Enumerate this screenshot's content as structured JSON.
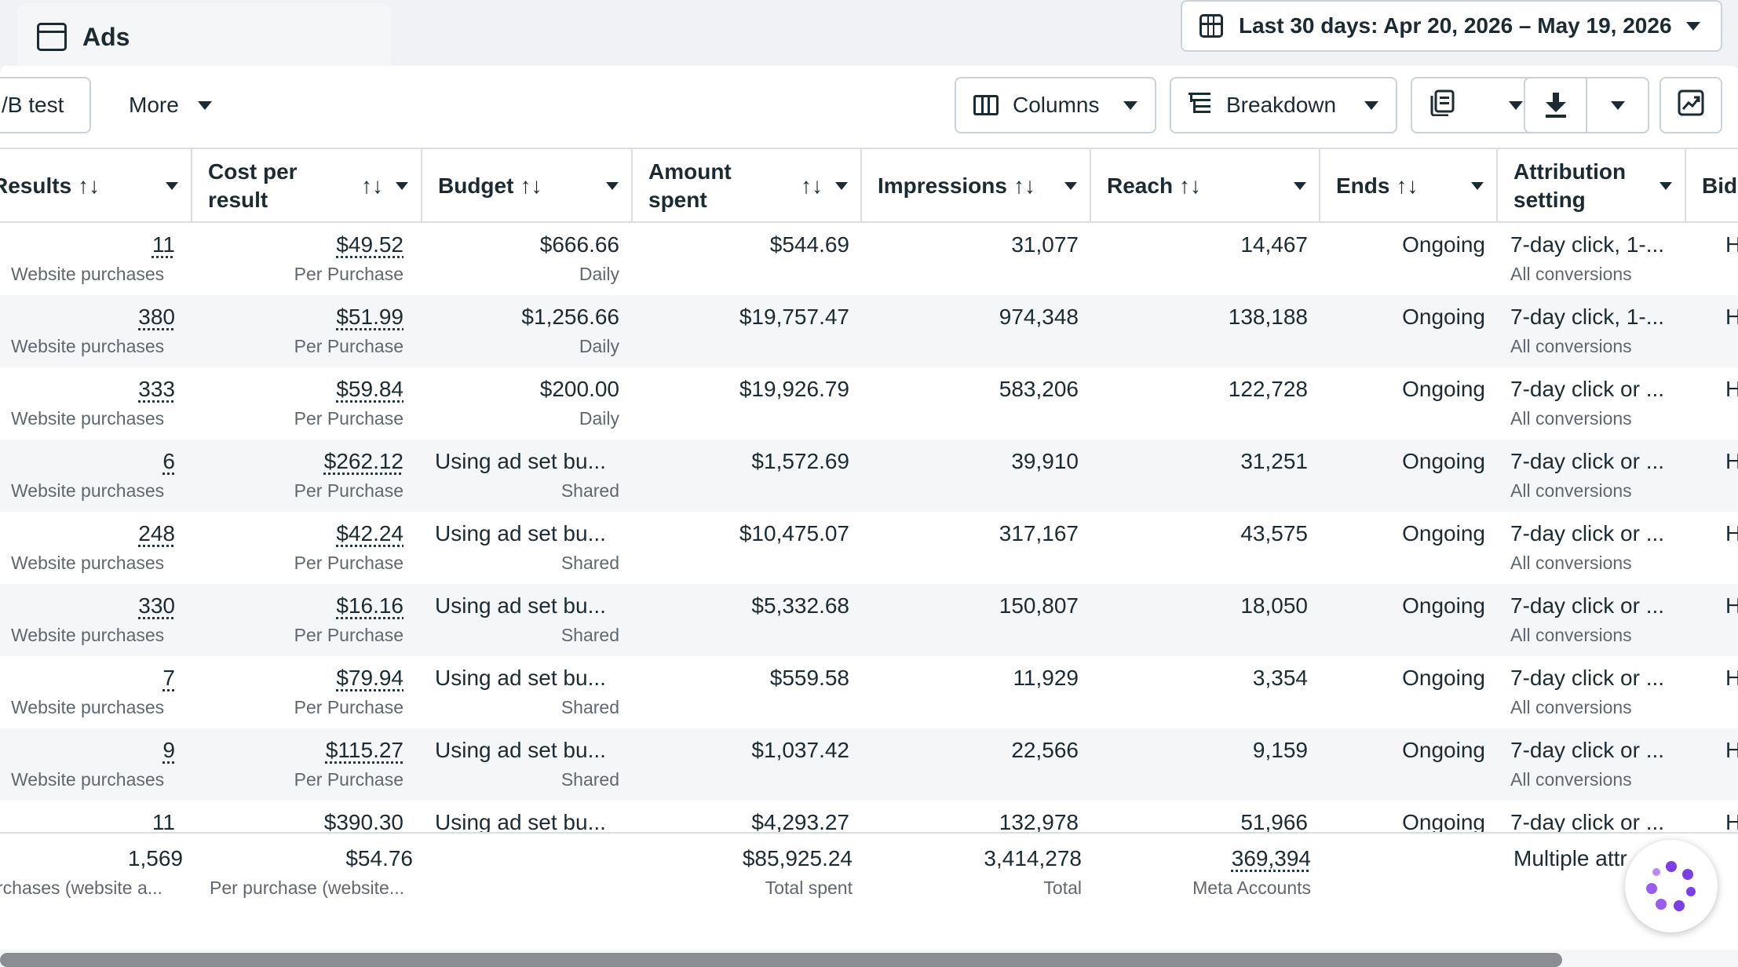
{
  "tab": {
    "label": "Ads"
  },
  "date_range": {
    "label": "Last 30 days: Apr 20, 2026 – May 19, 2026"
  },
  "toolbar": {
    "ab_test_label": "/B test",
    "more_label": "More",
    "columns_label": "Columns",
    "breakdown_label": "Breakdown"
  },
  "columns": [
    {
      "key": "results",
      "label": "Results"
    },
    {
      "key": "cost_per_result",
      "label": "Cost per result",
      "line1": "Cost per",
      "line2": "result"
    },
    {
      "key": "budget",
      "label": "Budget"
    },
    {
      "key": "amount_spent",
      "label": "Amount spent",
      "line1": "Amount",
      "line2": "spent"
    },
    {
      "key": "impressions",
      "label": "Impressions"
    },
    {
      "key": "reach",
      "label": "Reach"
    },
    {
      "key": "ends",
      "label": "Ends"
    },
    {
      "key": "attribution",
      "label": "Attribution setting",
      "line1": "Attribution",
      "line2": "setting"
    },
    {
      "key": "bid",
      "label": "Bid"
    }
  ],
  "sort_glyph": "↑↓",
  "rows": [
    {
      "results": "11",
      "results_sub": "Website purchases",
      "cpr": "$49.52",
      "cpr_sub": "Per Purchase",
      "budget": "$666.66",
      "budget_sub": "Daily",
      "spent": "$544.69",
      "impressions": "31,077",
      "reach": "14,467",
      "ends": "Ongoing",
      "attribution": "7-day click, 1-...",
      "attribution_sub": "All conversions",
      "bid": "H"
    },
    {
      "results": "380",
      "results_sub": "Website purchases",
      "cpr": "$51.99",
      "cpr_sub": "Per Purchase",
      "budget": "$1,256.66",
      "budget_sub": "Daily",
      "spent": "$19,757.47",
      "impressions": "974,348",
      "reach": "138,188",
      "ends": "Ongoing",
      "attribution": "7-day click, 1-...",
      "attribution_sub": "All conversions",
      "bid": "H"
    },
    {
      "results": "333",
      "results_sub": "Website purchases",
      "cpr": "$59.84",
      "cpr_sub": "Per Purchase",
      "budget": "$200.00",
      "budget_sub": "Daily",
      "spent": "$19,926.79",
      "impressions": "583,206",
      "reach": "122,728",
      "ends": "Ongoing",
      "attribution": "7-day click or ...",
      "attribution_sub": "All conversions",
      "bid": "H"
    },
    {
      "results": "6",
      "results_sub": "Website purchases",
      "cpr": "$262.12",
      "cpr_sub": "Per Purchase",
      "budget": "Using ad set bu...",
      "budget_sub": "Shared",
      "spent": "$1,572.69",
      "impressions": "39,910",
      "reach": "31,251",
      "ends": "Ongoing",
      "attribution": "7-day click or ...",
      "attribution_sub": "All conversions",
      "bid": "H"
    },
    {
      "results": "248",
      "results_sub": "Website purchases",
      "cpr": "$42.24",
      "cpr_sub": "Per Purchase",
      "budget": "Using ad set bu...",
      "budget_sub": "Shared",
      "spent": "$10,475.07",
      "impressions": "317,167",
      "reach": "43,575",
      "ends": "Ongoing",
      "attribution": "7-day click or ...",
      "attribution_sub": "All conversions",
      "bid": "H"
    },
    {
      "results": "330",
      "results_sub": "Website purchases",
      "cpr": "$16.16",
      "cpr_sub": "Per Purchase",
      "budget": "Using ad set bu...",
      "budget_sub": "Shared",
      "spent": "$5,332.68",
      "impressions": "150,807",
      "reach": "18,050",
      "ends": "Ongoing",
      "attribution": "7-day click or ...",
      "attribution_sub": "All conversions",
      "bid": "H"
    },
    {
      "results": "7",
      "results_sub": "Website purchases",
      "cpr": "$79.94",
      "cpr_sub": "Per Purchase",
      "budget": "Using ad set bu...",
      "budget_sub": "Shared",
      "spent": "$559.58",
      "impressions": "11,929",
      "reach": "3,354",
      "ends": "Ongoing",
      "attribution": "7-day click or ...",
      "attribution_sub": "All conversions",
      "bid": "H"
    },
    {
      "results": "9",
      "results_sub": "Website purchases",
      "cpr": "$115.27",
      "cpr_sub": "Per Purchase",
      "budget": "Using ad set bu...",
      "budget_sub": "Shared",
      "spent": "$1,037.42",
      "impressions": "22,566",
      "reach": "9,159",
      "ends": "Ongoing",
      "attribution": "7-day click or ...",
      "attribution_sub": "All conversions",
      "bid": "H"
    },
    {
      "results": "11",
      "results_sub": "",
      "cpr": "$390.30",
      "cpr_sub": "",
      "budget": "Using ad set bu...",
      "budget_sub": "",
      "spent": "$4,293.27",
      "impressions": "132,978",
      "reach": "51,966",
      "ends": "Ongoing",
      "attribution": "7-day click or ...",
      "attribution_sub": "",
      "bid": "H"
    }
  ],
  "totals": {
    "results": "1,569",
    "results_sub": "rchases (website a...",
    "cpr": "$54.76",
    "cpr_sub": "Per purchase (website...",
    "spent": "$85,925.24",
    "spent_sub": "Total spent",
    "impressions": "3,414,278",
    "impressions_sub": "Total",
    "reach": "369,394",
    "reach_sub": "Meta Accounts",
    "attribution": "Multiple attr"
  },
  "colors": {
    "text": "#1c2b33",
    "muted": "#606770",
    "border": "#dadde1",
    "row_alt": "#f5f6f7",
    "assistant_accent": "#7b3fe4"
  },
  "icons": [
    "window-icon",
    "calendar-icon",
    "columns-icon",
    "breakdown-icon",
    "reports-icon",
    "download-icon",
    "trend-chart-icon",
    "meta-ai-assistant-icon"
  ]
}
